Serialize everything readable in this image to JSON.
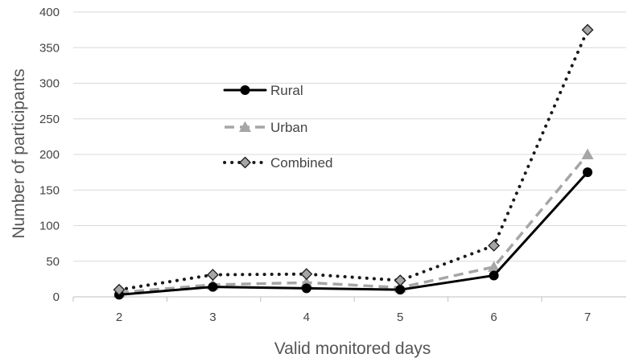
{
  "chart_data": {
    "type": "line",
    "xlabel": "Valid monitored days",
    "ylabel": "Number of participants",
    "categories": [
      "2",
      "3",
      "4",
      "5",
      "6",
      "7"
    ],
    "ylim": [
      0,
      400
    ],
    "yticks": [
      0,
      50,
      100,
      150,
      200,
      250,
      300,
      350,
      400
    ],
    "grid": "horizontal",
    "legend_position": "upper-left inside plot",
    "series": [
      {
        "name": "Rural",
        "values": [
          3,
          14,
          12,
          10,
          30,
          175
        ],
        "color": "#000000",
        "line_style": "solid",
        "marker": "circle"
      },
      {
        "name": "Urban",
        "values": [
          6,
          17,
          20,
          13,
          42,
          200
        ],
        "color": "#a6a6a6",
        "line_style": "dashed",
        "marker": "triangle"
      },
      {
        "name": "Combined",
        "values": [
          10,
          31,
          32,
          23,
          72,
          375
        ],
        "color": "#1a1a1a",
        "line_style": "dotted",
        "marker": "diamond"
      }
    ]
  }
}
